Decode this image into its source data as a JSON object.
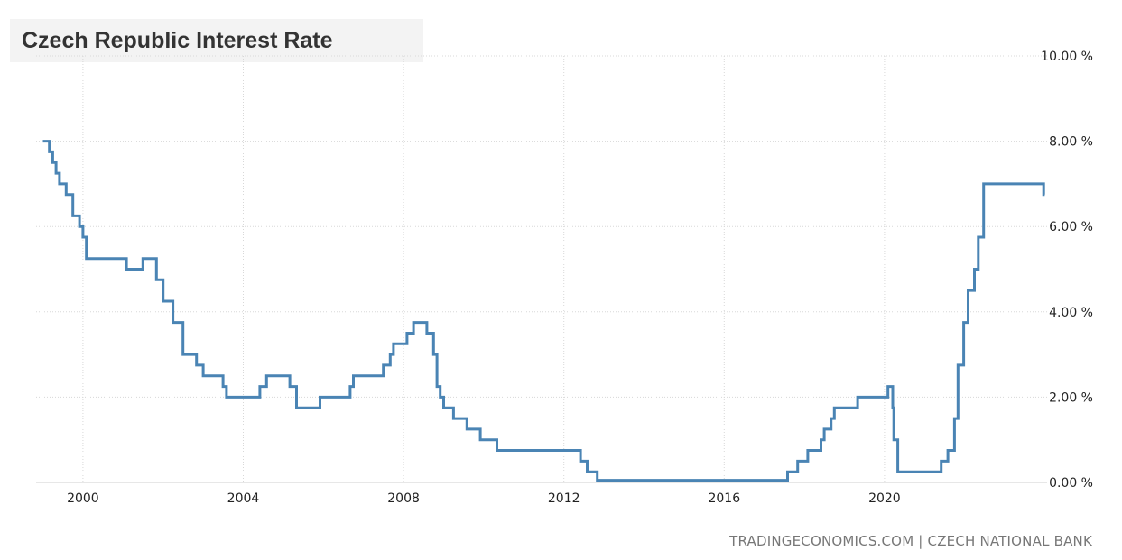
{
  "chart_data": {
    "type": "line",
    "title": "Czech Republic Interest Rate",
    "x_ticks": [
      "2000",
      "2004",
      "2008",
      "2012",
      "2016",
      "2020"
    ],
    "y_ticks": [
      "0.00 %",
      "2.00 %",
      "4.00 %",
      "6.00 %",
      "8.00 %",
      "10.00 %"
    ],
    "ylim": [
      0,
      10
    ],
    "xlim": [
      "1999-01",
      "2024-01"
    ],
    "grid": true,
    "series_color": "#4a84b4",
    "series": [
      {
        "step": true,
        "points": [
          [
            "1999-01-01",
            8.0
          ],
          [
            "1999-03-01",
            7.75
          ],
          [
            "1999-04-01",
            7.5
          ],
          [
            "1999-05-01",
            7.25
          ],
          [
            "1999-06-01",
            7.0
          ],
          [
            "1999-08-01",
            6.75
          ],
          [
            "1999-10-01",
            6.25
          ],
          [
            "1999-12-01",
            6.0
          ],
          [
            "2000-01-01",
            5.75
          ],
          [
            "2000-02-01",
            5.25
          ],
          [
            "2001-02-01",
            5.0
          ],
          [
            "2001-07-01",
            5.25
          ],
          [
            "2001-11-01",
            4.75
          ],
          [
            "2002-01-01",
            4.25
          ],
          [
            "2002-04-01",
            3.75
          ],
          [
            "2002-07-01",
            3.0
          ],
          [
            "2002-11-01",
            2.75
          ],
          [
            "2003-01-01",
            2.5
          ],
          [
            "2003-07-01",
            2.25
          ],
          [
            "2003-08-01",
            2.0
          ],
          [
            "2004-06-01",
            2.25
          ],
          [
            "2004-08-01",
            2.5
          ],
          [
            "2005-03-01",
            2.25
          ],
          [
            "2005-05-01",
            1.75
          ],
          [
            "2005-12-01",
            2.0
          ],
          [
            "2006-09-01",
            2.25
          ],
          [
            "2006-10-01",
            2.5
          ],
          [
            "2007-07-01",
            2.75
          ],
          [
            "2007-09-01",
            3.0
          ],
          [
            "2007-10-01",
            3.25
          ],
          [
            "2008-02-01",
            3.5
          ],
          [
            "2008-04-01",
            3.75
          ],
          [
            "2008-08-01",
            3.5
          ],
          [
            "2008-10-01",
            3.0
          ],
          [
            "2008-11-01",
            2.25
          ],
          [
            "2008-12-01",
            2.0
          ],
          [
            "2009-01-01",
            1.75
          ],
          [
            "2009-04-01",
            1.5
          ],
          [
            "2009-08-01",
            1.25
          ],
          [
            "2009-12-01",
            1.0
          ],
          [
            "2010-05-01",
            0.75
          ],
          [
            "2012-06-01",
            0.5
          ],
          [
            "2012-08-01",
            0.25
          ],
          [
            "2012-11-01",
            0.05
          ],
          [
            "2017-08-01",
            0.25
          ],
          [
            "2017-11-01",
            0.5
          ],
          [
            "2018-02-01",
            0.75
          ],
          [
            "2018-06-01",
            1.0
          ],
          [
            "2018-07-01",
            1.25
          ],
          [
            "2018-09-01",
            1.5
          ],
          [
            "2018-10-01",
            1.75
          ],
          [
            "2019-05-01",
            2.0
          ],
          [
            "2020-02-01",
            2.25
          ],
          [
            "2020-03-16",
            1.75
          ],
          [
            "2020-03-26",
            1.0
          ],
          [
            "2020-05-01",
            0.25
          ],
          [
            "2021-06-01",
            0.5
          ],
          [
            "2021-08-01",
            0.75
          ],
          [
            "2021-09-30",
            1.5
          ],
          [
            "2021-11-01",
            2.75
          ],
          [
            "2021-12-23",
            3.75
          ],
          [
            "2022-02-01",
            4.5
          ],
          [
            "2022-03-31",
            5.0
          ],
          [
            "2022-05-05",
            5.75
          ],
          [
            "2022-06-23",
            7.0
          ],
          [
            "2023-12-21",
            6.75
          ]
        ],
        "end_date": "2023-12-31"
      }
    ]
  },
  "source_text": "TRADINGECONOMICS.COM | CZECH NATIONAL BANK"
}
